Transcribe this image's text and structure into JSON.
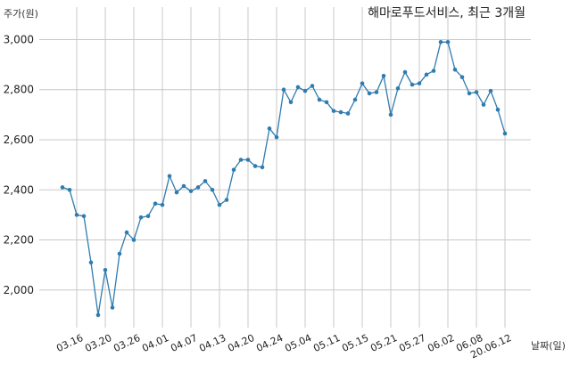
{
  "chart_data": {
    "type": "line",
    "title": "해마로푸드서비스, 최근 3개월",
    "ylabel": "주가(원)",
    "xlabel": "날짜(일)",
    "ylim": [
      1850,
      3030
    ],
    "y_ticks": [
      2000,
      2200,
      2400,
      2600,
      2800,
      3000
    ],
    "y_tick_labels": [
      "2,000",
      "2,200",
      "2,400",
      "2,600",
      "2,800",
      "3,000"
    ],
    "x_tick_labels": [
      "03.16",
      "03.20",
      "03.26",
      "04.01",
      "04.07",
      "04.13",
      "04.20",
      "04.24",
      "05.04",
      "05.11",
      "05.15",
      "05.21",
      "05.27",
      "06.02",
      "06.08",
      "20.06.12"
    ],
    "x_tick_indices": [
      2,
      6,
      10,
      14,
      18,
      22,
      26,
      30,
      34,
      38,
      42,
      46,
      50,
      54,
      58,
      62
    ],
    "grid": true,
    "line_color": "#2f7cb0",
    "series": [
      {
        "values": [
          2410,
          2400,
          2300,
          2295,
          2110,
          1900,
          2080,
          1930,
          2145,
          2230,
          2200,
          2290,
          2295,
          2345,
          2340,
          2455,
          2390,
          2415,
          2395,
          2410,
          2435,
          2400,
          2340,
          2360,
          2480,
          2520,
          2520,
          2495,
          2490,
          2645,
          2610,
          2800,
          2750,
          2810,
          2795,
          2815,
          2760,
          2750,
          2715,
          2710,
          2705,
          2760,
          2825,
          2785,
          2790,
          2855,
          2700,
          2805,
          2870,
          2820,
          2825,
          2860,
          2875,
          2990,
          2990,
          2880,
          2850,
          2785,
          2790,
          2740,
          2795,
          2720,
          2625
        ]
      }
    ]
  }
}
